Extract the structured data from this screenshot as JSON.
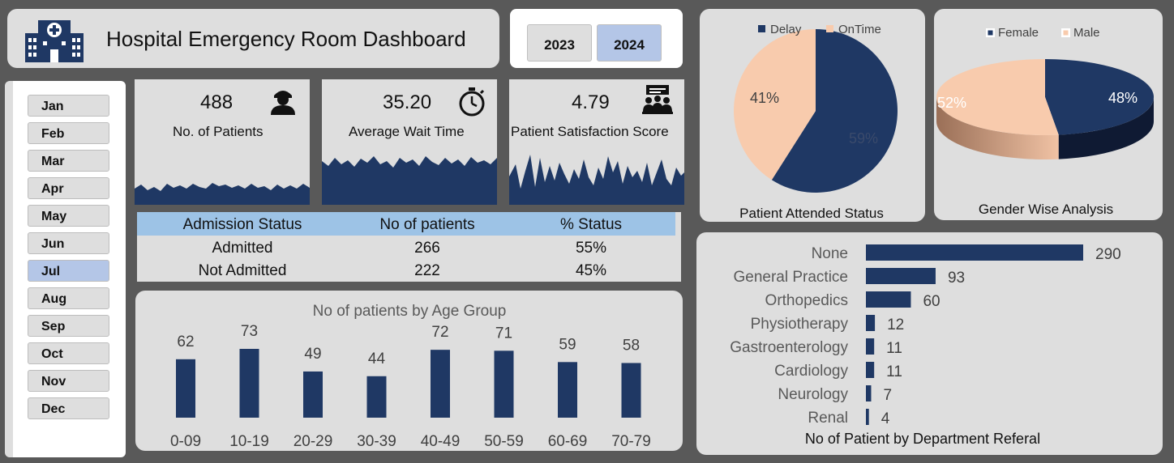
{
  "title": "Hospital Emergency Room Dashboard",
  "years": [
    "2023",
    "2024"
  ],
  "active_year": "2024",
  "months": [
    "Jan",
    "Feb",
    "Mar",
    "Apr",
    "May",
    "Jun",
    "Jul",
    "Aug",
    "Sep",
    "Oct",
    "Nov",
    "Dec"
  ],
  "active_month": "Jul",
  "kpis": {
    "patients": {
      "value": "488",
      "label": "No. of Patients",
      "icon": "patient-icon"
    },
    "wait": {
      "value": "35.20",
      "label": "Average Wait Time",
      "icon": "stopwatch-icon"
    },
    "satisfaction": {
      "value": "4.79",
      "label": "Patient Satisfaction Score",
      "icon": "meeting-icon"
    }
  },
  "admission": {
    "headers": [
      "Admission Status",
      "No of patients",
      "% Status"
    ],
    "rows": [
      [
        "Admitted",
        "266",
        "55%"
      ],
      [
        "Not Admitted",
        "222",
        "45%"
      ]
    ]
  },
  "colors": {
    "navy": "#1f3864",
    "peach": "#f8cbad",
    "blue_header": "#9dc3e6",
    "active": "#b4c6e7",
    "panel": "#dedede"
  },
  "chart_data": [
    {
      "type": "bar",
      "title": "No of patients by Age Group",
      "categories": [
        "0-09",
        "10-19",
        "20-29",
        "30-39",
        "40-49",
        "50-59",
        "60-69",
        "70-79"
      ],
      "values": [
        62,
        73,
        49,
        44,
        72,
        71,
        59,
        58
      ]
    },
    {
      "type": "pie",
      "title": "Patient Attended Status",
      "labels": [
        "Delay",
        "OnTime"
      ],
      "values": [
        59,
        41
      ],
      "display": [
        "59%",
        "41%"
      ],
      "legend": "top"
    },
    {
      "type": "pie",
      "title": "Gender Wise Analysis",
      "labels": [
        "Female",
        "Male"
      ],
      "values": [
        48,
        52
      ],
      "display": [
        "48%",
        "52%"
      ],
      "legend": "top"
    },
    {
      "type": "bar",
      "orientation": "horizontal",
      "title": "No of Patient by Department Referal",
      "categories": [
        "None",
        "General Practice",
        "Orthopedics",
        "Physiotherapy",
        "Gastroenterology",
        "Cardiology",
        "Neurology",
        "Renal"
      ],
      "values": [
        290,
        93,
        60,
        12,
        11,
        11,
        7,
        4
      ]
    }
  ]
}
